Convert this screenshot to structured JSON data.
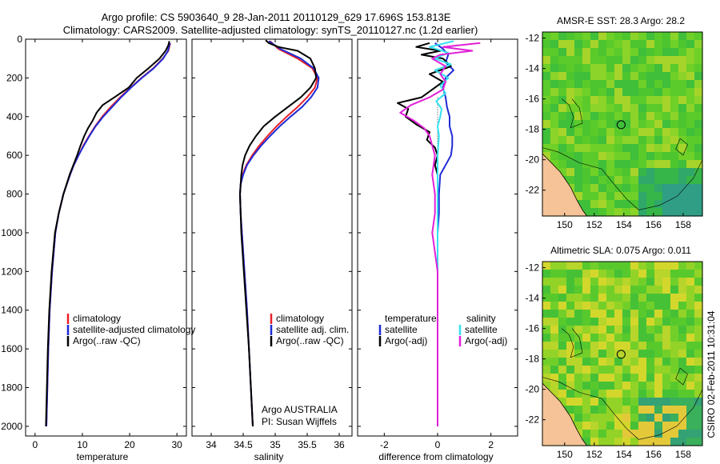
{
  "figure": {
    "title_line1": "Argo profile: CS 5903640_9 28-Jan-2011 20110129_629 17.696S 153.813E",
    "title_line2": "Climatology: CARS2009. Satellite-adjusted climatology: synTS_20110127.nc (1.2d earlier)",
    "side_stamp": "CSIRO 02-Feb-2011 10:31:04"
  },
  "colors": {
    "climatology": "#e8202a",
    "satellite": "#1f2bd6",
    "argo": "#000000",
    "sat_salt": "#33e0f0",
    "argo_salt": "#e020d8",
    "land": "#f5c397",
    "ocean_green": "#49c236"
  },
  "chart_data": [
    {
      "type": "line",
      "id": "temperature",
      "xlabel": "temperature",
      "ylabel": "",
      "xlim": [
        -2,
        32
      ],
      "ylim": [
        2050,
        0
      ],
      "xticks": [
        0,
        10,
        20,
        30
      ],
      "yticks": [
        0,
        200,
        400,
        600,
        800,
        1000,
        1200,
        1400,
        1600,
        1800,
        2000
      ],
      "series": [
        {
          "name": "climatology",
          "color": "#e8202a",
          "depth": [
            20,
            60,
            100,
            150,
            200,
            250,
            300,
            350,
            400,
            450,
            500,
            550,
            600,
            650,
            700,
            800,
            900,
            1000,
            1200,
            1400,
            1600,
            1800,
            2000
          ],
          "values": [
            28.6,
            28.2,
            27.0,
            25.0,
            22.5,
            20.2,
            18.0,
            16.0,
            14.2,
            12.7,
            11.4,
            10.2,
            9.2,
            8.2,
            7.4,
            6.0,
            5.0,
            4.3,
            3.6,
            3.1,
            2.8,
            2.6,
            2.4
          ]
        },
        {
          "name": "satellite-adjusted climatology",
          "color": "#1f2bd6",
          "depth": [
            20,
            60,
            100,
            150,
            200,
            250,
            300,
            350,
            400,
            450,
            500,
            550,
            600,
            650,
            700,
            800,
            900,
            1000,
            1200,
            1400,
            1600,
            1800,
            2000
          ],
          "values": [
            28.5,
            28.1,
            27.1,
            25.1,
            22.6,
            20.3,
            18.2,
            16.3,
            14.4,
            12.8,
            11.5,
            10.3,
            9.2,
            8.2,
            7.4,
            6.0,
            5.0,
            4.3,
            3.6,
            3.1,
            2.8,
            2.6,
            2.4
          ]
        },
        {
          "name": "Argo(..raw -QC)",
          "color": "#000000",
          "depth": [
            10,
            30,
            60,
            100,
            150,
            200,
            250,
            300,
            340,
            380,
            420,
            460,
            500,
            550,
            600,
            650,
            700,
            800,
            900,
            1000,
            1200,
            1400,
            1600,
            1800,
            2000
          ],
          "values": [
            28.4,
            28.2,
            27.6,
            26.3,
            24.0,
            21.5,
            19.8,
            16.8,
            14.3,
            13.0,
            12.2,
            11.2,
            10.4,
            9.6,
            8.9,
            8.1,
            7.3,
            6.0,
            5.0,
            4.2,
            3.5,
            3.0,
            2.7,
            2.5,
            2.3
          ]
        }
      ],
      "legend": [
        "climatology",
        "satellite-adjusted climatology",
        "Argo(..raw -QC)"
      ],
      "legend_location": "lower-right"
    },
    {
      "type": "line",
      "id": "salinity",
      "xlabel": "salinity",
      "xlim": [
        33.7,
        36.2
      ],
      "ylim": [
        2050,
        0
      ],
      "xticks": [
        34,
        34.5,
        35,
        35.5,
        36
      ],
      "series": [
        {
          "name": "climatology",
          "color": "#e8202a",
          "depth": [
            10,
            50,
            100,
            150,
            200,
            250,
            300,
            350,
            400,
            450,
            500,
            550,
            600,
            650,
            700,
            750,
            800,
            900,
            1000,
            1200,
            1400,
            1600,
            1800,
            2000
          ],
          "values": [
            34.92,
            35.05,
            35.35,
            35.58,
            35.66,
            35.62,
            35.5,
            35.35,
            35.18,
            35.02,
            34.88,
            34.75,
            34.64,
            34.55,
            34.49,
            34.46,
            34.45,
            34.46,
            34.48,
            34.52,
            34.56,
            34.59,
            34.62,
            34.65
          ]
        },
        {
          "name": "satellite adj. clim.",
          "color": "#1f2bd6",
          "depth": [
            10,
            50,
            100,
            150,
            200,
            250,
            300,
            350,
            400,
            450,
            500,
            550,
            600,
            650,
            700,
            750,
            800,
            900,
            1000,
            1200,
            1400,
            1600,
            1800,
            2000
          ],
          "values": [
            34.9,
            35.08,
            35.4,
            35.6,
            35.68,
            35.66,
            35.56,
            35.42,
            35.24,
            35.07,
            34.92,
            34.78,
            34.66,
            34.56,
            34.5,
            34.46,
            34.45,
            34.46,
            34.48,
            34.52,
            34.56,
            34.59,
            34.62,
            34.65
          ]
        },
        {
          "name": "Argo(..raw -QC)",
          "color": "#000000",
          "depth": [
            5,
            20,
            40,
            60,
            100,
            150,
            200,
            250,
            300,
            350,
            400,
            450,
            500,
            550,
            600,
            650,
            700,
            800,
            900,
            1000,
            1200,
            1400,
            1600,
            1800,
            2000
          ],
          "values": [
            34.85,
            34.9,
            35.05,
            35.35,
            35.55,
            35.62,
            35.64,
            35.55,
            35.4,
            35.2,
            35.0,
            34.82,
            34.7,
            34.6,
            34.53,
            34.49,
            34.47,
            34.45,
            34.46,
            34.47,
            34.51,
            34.55,
            34.59,
            34.62,
            34.65
          ]
        }
      ],
      "legend": [
        "climatology",
        "satellite adj. clim.",
        "Argo(..raw -QC)"
      ],
      "legend_location": "lower-right",
      "annotation_line1": "Argo AUSTRALIA",
      "annotation_line2": "PI: Susan Wijffels"
    },
    {
      "type": "line",
      "id": "difference",
      "xlabel": "difference from climatology",
      "xlim": [
        -3,
        3
      ],
      "ylim": [
        2050,
        0
      ],
      "xticks": [
        -2,
        0,
        2
      ],
      "series": [
        {
          "name": "temperature satellite",
          "color": "#1f2bd6",
          "depth": [
            20,
            50,
            80,
            120,
            160,
            200,
            250,
            300,
            350,
            400,
            450,
            500,
            550,
            600,
            650,
            700,
            800,
            900,
            1000,
            1200,
            1400,
            1600,
            1800,
            2000
          ],
          "values": [
            -0.1,
            0.2,
            0.4,
            0.3,
            0.6,
            0.3,
            0.2,
            0.3,
            0.35,
            0.45,
            0.45,
            0.55,
            0.55,
            0.5,
            0.3,
            0.1,
            0.05,
            0.05,
            0.0,
            0.0,
            0.0,
            0.0,
            0.0,
            0.0
          ]
        },
        {
          "name": "temperature Argo(-adj)",
          "color": "#000000",
          "depth": [
            20,
            40,
            60,
            80,
            100,
            140,
            180,
            220,
            260,
            300,
            330,
            360,
            400,
            440,
            480,
            520,
            560,
            600,
            650,
            700,
            800,
            1000,
            1200,
            1500,
            1800,
            2000
          ],
          "values": [
            -0.3,
            -0.8,
            0.1,
            -0.6,
            0.2,
            0.5,
            -0.3,
            0.2,
            -0.2,
            -0.6,
            -1.5,
            -1.1,
            -1.2,
            -0.8,
            -0.3,
            -0.4,
            -0.1,
            0.0,
            -0.1,
            0.0,
            0.0,
            0.0,
            0.0,
            0.0,
            0.0,
            0.0
          ]
        },
        {
          "name": "salinity satellite",
          "color": "#33e0f0",
          "depth": [
            10,
            40,
            70,
            100,
            130,
            160,
            200,
            240,
            280,
            320,
            360,
            400,
            450,
            500,
            600,
            800,
            1000,
            1200,
            1500,
            1800,
            2000
          ],
          "values": [
            0.6,
            -0.3,
            0.4,
            -0.1,
            0.5,
            -0.1,
            0.4,
            0.1,
            0.3,
            -0.05,
            0.15,
            0.1,
            0.0,
            0.05,
            0.0,
            0.0,
            0.0,
            0.0,
            0.0,
            0.0,
            0.0
          ]
        },
        {
          "name": "salinity Argo(-adj)",
          "color": "#e020d8",
          "depth": [
            20,
            40,
            60,
            80,
            100,
            140,
            180,
            220,
            260,
            300,
            340,
            380,
            420,
            460,
            500,
            550,
            600,
            700,
            800,
            900,
            1000,
            1100,
            1200,
            1400,
            1600,
            1800,
            2000
          ],
          "values": [
            1.6,
            0.2,
            1.3,
            0.1,
            -0.2,
            0.3,
            0.1,
            0.3,
            0.2,
            -0.3,
            -1.0,
            -1.4,
            -0.9,
            -0.5,
            -0.3,
            -0.2,
            -0.1,
            -0.2,
            -0.1,
            -0.1,
            -0.2,
            -0.1,
            0.0,
            0.0,
            0.0,
            0.0,
            0.0
          ]
        }
      ],
      "legend_temp_heading": "temperature",
      "legend_salt_heading": "salinity",
      "legend_temp": [
        "satellite",
        "Argo(-adj)"
      ],
      "legend_salt": [
        "satellite",
        "Argo(-adj)"
      ],
      "legend_location": "lower-center"
    },
    {
      "type": "heatmap",
      "id": "sst_map",
      "title": "AMSR-E SST: 28.3  Argo: 28.2",
      "xlim": [
        148.5,
        159.3
      ],
      "ylim": [
        -23.7,
        -11.6
      ],
      "xticks": [
        150,
        152,
        154,
        156,
        158
      ],
      "yticks": [
        -12,
        -14,
        -16,
        -18,
        -20,
        -22
      ],
      "float_lon": 153.813,
      "float_lat": -17.696
    },
    {
      "type": "heatmap",
      "id": "sla_map",
      "title": "Altimetric SLA: 0.075  Argo: 0.011",
      "xlim": [
        148.5,
        159.3
      ],
      "ylim": [
        -23.7,
        -11.6
      ],
      "xticks": [
        150,
        152,
        154,
        156,
        158
      ],
      "yticks": [
        -12,
        -14,
        -16,
        -18,
        -20,
        -22
      ],
      "float_lon": 153.813,
      "float_lat": -17.696
    }
  ]
}
